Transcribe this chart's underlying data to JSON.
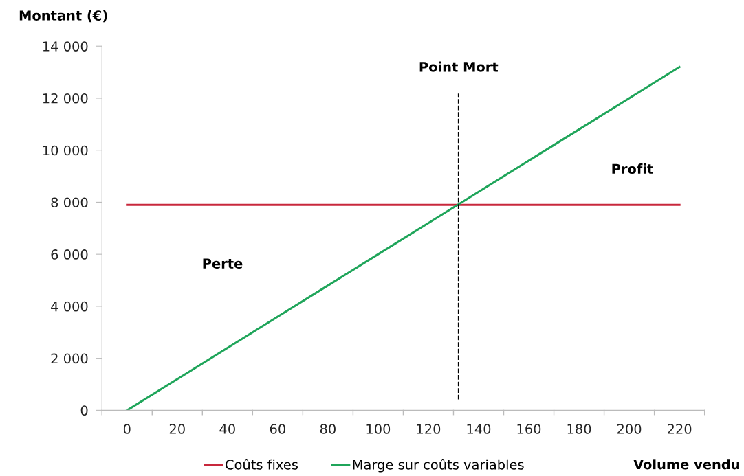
{
  "chart_data": {
    "type": "line",
    "x": [
      0,
      20,
      40,
      60,
      80,
      100,
      120,
      140,
      160,
      180,
      200,
      220
    ],
    "series": [
      {
        "name": "Coûts fixes",
        "color": "#c8283c",
        "values": [
          7900,
          7900,
          7900,
          7900,
          7900,
          7900,
          7900,
          7900,
          7900,
          7900,
          7900,
          7900
        ]
      },
      {
        "name": "Marge sur coûts variables",
        "color": "#1fa55a",
        "values": [
          0,
          1200,
          2400,
          3600,
          4800,
          6000,
          7200,
          8400,
          9600,
          10800,
          12000,
          13200
        ]
      }
    ],
    "xlabel": "Volume vendu",
    "ylabel": "Montant (€)",
    "xlim": [
      -10,
      230
    ],
    "xticks": [
      0,
      20,
      40,
      60,
      80,
      100,
      120,
      140,
      160,
      180,
      200,
      220
    ],
    "ylim": [
      0,
      14000
    ],
    "yticks": [
      0,
      {
        "value": 2000,
        "label": "2 000"
      },
      {
        "value": 4000,
        "label": "4 000"
      },
      {
        "value": 6000,
        "label": "6 000"
      },
      {
        "value": 8000,
        "label": "8 000"
      },
      {
        "value": 10000,
        "label": "10 000"
      },
      {
        "value": 12000,
        "label": "12 000"
      },
      {
        "value": 14000,
        "label": "14 000"
      }
    ],
    "ref_lines": [
      {
        "axis": "x",
        "value": 132,
        "label": "Point Mort",
        "color": "#000000",
        "line_style": "dashed"
      }
    ],
    "annotations": [
      "Perte",
      "Profit"
    ],
    "legend": "bottom",
    "grid": false,
    "marker": "none",
    "line_style": "solid"
  }
}
